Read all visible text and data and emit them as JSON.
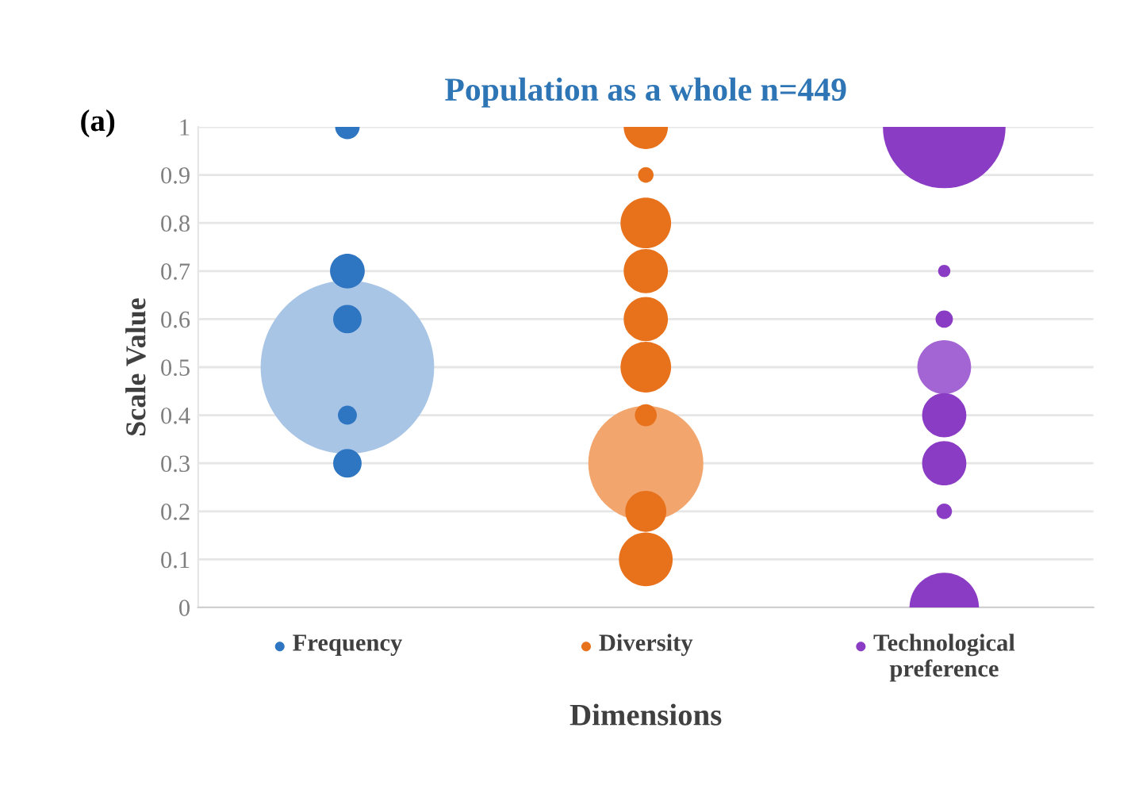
{
  "chart_data": {
    "type": "bubble",
    "title": "Population as a whole n=449",
    "xlabel": "Dimensions",
    "ylabel": "Scale Value",
    "annotations": [
      "(a)"
    ],
    "categories": [
      "Frequency",
      "Diversity",
      "Technological preference"
    ],
    "series": [
      {
        "colors": [
          "#2e75c2",
          "#e8711c",
          "#8a3cc4"
        ],
        "values": [
          1,
          1,
          1
        ],
        "sizes": [
          0.02,
          0.065,
          0.5
        ]
      },
      {
        "colors": [
          "#2e75c2",
          "#e8711c",
          "#8a3cc4"
        ],
        "values": [
          null,
          0.9,
          null
        ],
        "sizes": [
          null,
          0.008,
          null
        ]
      },
      {
        "colors": [
          "#2e75c2",
          "#e8711c",
          "#8a3cc4"
        ],
        "values": [
          null,
          0.8,
          null
        ],
        "sizes": [
          null,
          0.085,
          null
        ]
      },
      {
        "colors": [
          "#2e75c2",
          "#e8711c",
          "#8a3cc4"
        ],
        "values": [
          0.7,
          0.7,
          0.7
        ],
        "sizes": [
          0.04,
          0.065,
          0.005
        ]
      },
      {
        "colors": [
          "#2e75c2",
          "#e8711c",
          "#8a3cc4"
        ],
        "values": [
          0.6,
          0.6,
          0.6
        ],
        "sizes": [
          0.027,
          0.065,
          0.01
        ]
      },
      {
        "colors": [
          "#a9c5e6",
          "#e8711c",
          "#a465d4"
        ],
        "values": [
          0.5,
          0.5,
          0.5
        ],
        "sizes": [
          1,
          0.085,
          0.096
        ]
      },
      {
        "colors": [
          "#2e75c2",
          "#e8711c",
          "#8a3cc4"
        ],
        "values": [
          0.4,
          0.4,
          0.4
        ],
        "sizes": [
          0.012,
          0.016,
          0.065
        ]
      },
      {
        "colors": [
          "#2e75c2",
          "#f2a66e",
          "#8a3cc4"
        ],
        "values": [
          0.3,
          0.3,
          0.3
        ],
        "sizes": [
          0.027,
          0.44,
          0.065
        ]
      },
      {
        "colors": [
          "#2e75c2",
          "#e8711c",
          "#8a3cc4"
        ],
        "values": [
          null,
          0.2,
          0.2
        ],
        "sizes": [
          null,
          0.056,
          0.008
        ]
      },
      {
        "colors": [
          "#2e75c2",
          "#e8711c",
          "#8a3cc4"
        ],
        "values": [
          null,
          0.1,
          null
        ],
        "sizes": [
          null,
          0.096,
          null
        ]
      },
      {
        "colors": [
          "#2e75c2",
          "#e8711c",
          "#8a3cc4"
        ],
        "values": [
          null,
          null,
          0
        ],
        "sizes": [
          null,
          null,
          0.16
        ]
      }
    ],
    "ylim": [
      0,
      1
    ],
    "yticks": [
      0,
      0.1,
      0.2,
      0.3,
      0.4,
      0.5,
      0.6,
      0.7,
      0.8,
      0.9,
      1
    ],
    "grid": "y",
    "marker": "circle"
  }
}
